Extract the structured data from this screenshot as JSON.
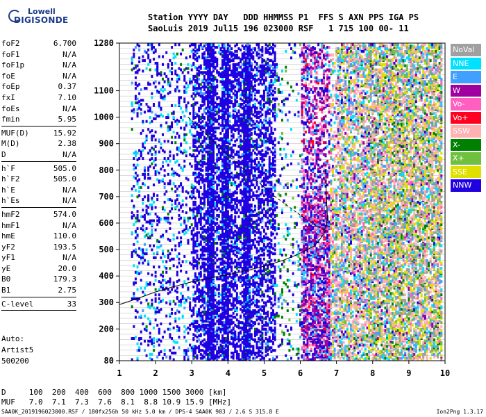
{
  "logo": {
    "line1": "Lowell",
    "line2": "DIGISONDE"
  },
  "header": {
    "row1": "Station YYYY DAY   DDD HHMMSS P1  FFS S AXN PPS IGA PS",
    "row2": "SaoLuis 2019 Jul15 196 023000 RSF   1 715 100 00- 11"
  },
  "params": [
    {
      "label": "foF2",
      "value": "6.700"
    },
    {
      "label": "foF1",
      "value": "N/A"
    },
    {
      "label": "foF1p",
      "value": "N/A"
    },
    {
      "label": "foE",
      "value": "N/A"
    },
    {
      "label": "foEp",
      "value": "0.37"
    },
    {
      "label": "fxI",
      "value": "7.10"
    },
    {
      "label": "foEs",
      "value": "N/A"
    },
    {
      "label": "fmin",
      "value": "5.95"
    },
    {
      "sep": true
    },
    {
      "label": "MUF(D)",
      "value": "15.92"
    },
    {
      "label": "M(D)",
      "value": "2.38"
    },
    {
      "label": "D",
      "value": "N/A"
    },
    {
      "sep": true
    },
    {
      "label": "h`F",
      "value": "505.0"
    },
    {
      "label": "h`F2",
      "value": "505.0"
    },
    {
      "label": "h`E",
      "value": "N/A"
    },
    {
      "label": "h`Es",
      "value": "N/A"
    },
    {
      "sep": true
    },
    {
      "label": "hmF2",
      "value": "574.0"
    },
    {
      "label": "hmF1",
      "value": "N/A"
    },
    {
      "label": "hmE",
      "value": "110.0"
    },
    {
      "label": "yF2",
      "value": "193.5"
    },
    {
      "label": "yF1",
      "value": "N/A"
    },
    {
      "label": "yE",
      "value": "20.0"
    },
    {
      "label": "B0",
      "value": "179.3"
    },
    {
      "label": "B1",
      "value": "2.75"
    },
    {
      "sep": true
    },
    {
      "label": "C-level",
      "value": "33"
    },
    {
      "sep": true
    }
  ],
  "auto": {
    "line1": "Auto:",
    "line2": "Artist5",
    "line3": "500200"
  },
  "legend": [
    {
      "label": "NoVal",
      "color": "#a0a0a0"
    },
    {
      "label": "NNE",
      "color": "#00e0ff"
    },
    {
      "label": "E",
      "color": "#40a0ff"
    },
    {
      "label": "W",
      "color": "#a000a0"
    },
    {
      "label": "Vo-",
      "color": "#ff60c0"
    },
    {
      "label": "Vo+",
      "color": "#ff0020"
    },
    {
      "label": "SSW",
      "color": "#ffb0b0"
    },
    {
      "label": "X-",
      "color": "#008000"
    },
    {
      "label": "X+",
      "color": "#70c040"
    },
    {
      "label": "SSE",
      "color": "#e0e000"
    },
    {
      "label": "NNW",
      "color": "#2000e0"
    }
  ],
  "bottom": {
    "d_row": "D     100  200  400  600  800 1000 1500 3000 [km]",
    "muf_row": "MUF   7.0  7.1  7.3  7.6  8.1  8.8 10.9 15.9 [MHz]"
  },
  "footer": {
    "left": "SAA0K_2019196023000.RSF / 180fx256h 50 kHz 5.0 km / DPS-4 SAA0K 903 / 2.6 S 315.8 E",
    "right": "Ion2Png 1.3.17"
  },
  "chart_data": {
    "type": "scatter",
    "xlim": [
      1,
      10
    ],
    "ylim": [
      80,
      1280
    ],
    "x_ticks": [
      1,
      2,
      3,
      4,
      5,
      6,
      7,
      8,
      9,
      10
    ],
    "y_ticks": [
      80,
      200,
      300,
      400,
      500,
      600,
      700,
      800,
      900,
      1000,
      1100,
      1280
    ],
    "grid": true,
    "legend_position": "right",
    "profile_solid": {
      "x": [
        1.0,
        1.5,
        2.0,
        2.5,
        3.0,
        3.5,
        4.0,
        4.5,
        5.0,
        5.5,
        5.9,
        6.2,
        6.4,
        6.55,
        6.65,
        6.7,
        6.75,
        6.72,
        6.7
      ],
      "y": [
        292,
        315,
        340,
        360,
        378,
        392,
        405,
        420,
        437,
        458,
        480,
        500,
        515,
        540,
        560,
        574,
        620,
        700,
        800
      ]
    },
    "profile_dashed": {
      "x": [
        2.9,
        3.3,
        3.8,
        4.3,
        4.8,
        5.3,
        5.8,
        6.2,
        6.5,
        6.7
      ],
      "y": [
        1000,
        950,
        880,
        820,
        760,
        700,
        650,
        610,
        585,
        574
      ]
    }
  }
}
